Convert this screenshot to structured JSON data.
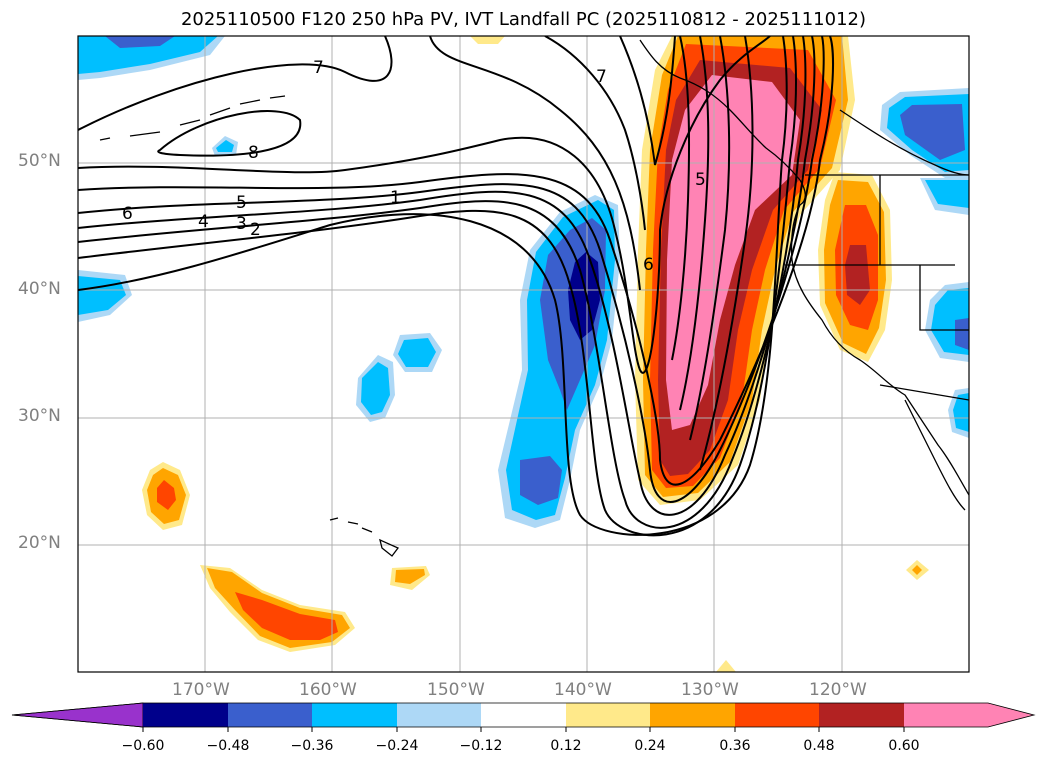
{
  "chart_data": {
    "type": "heatmap",
    "title": "2025110500 F120 250 hPa PV, IVT Landfall PC (2025110812 - 2025111012)",
    "map": {
      "lat_range": [
        10,
        60
      ],
      "lon_range": [
        -180,
        -110
      ],
      "lat_ticks": [
        "20°N",
        "30°N",
        "40°N",
        "50°N"
      ],
      "lon_ticks": [
        "170°W",
        "160°W",
        "150°W",
        "140°W",
        "130°W",
        "120°W"
      ],
      "grid": true
    },
    "colorbar": {
      "ticks": [
        "−0.60",
        "−0.48",
        "−0.36",
        "−0.24",
        "−0.12",
        "0.12",
        "0.24",
        "0.36",
        "0.48",
        "0.60"
      ],
      "colors": [
        "#9932cc",
        "#00008b",
        "#3a5fcd",
        "#00bfff",
        "#add8f6",
        "#ffffff",
        "#ffe98a",
        "#ffa500",
        "#ff4500",
        "#b22222",
        "#ff83b4"
      ],
      "extend": "both"
    },
    "contour_labels": [
      "7",
      "8",
      "6",
      "5",
      "4",
      "3",
      "2",
      "1",
      "7",
      "6",
      "5"
    ]
  }
}
